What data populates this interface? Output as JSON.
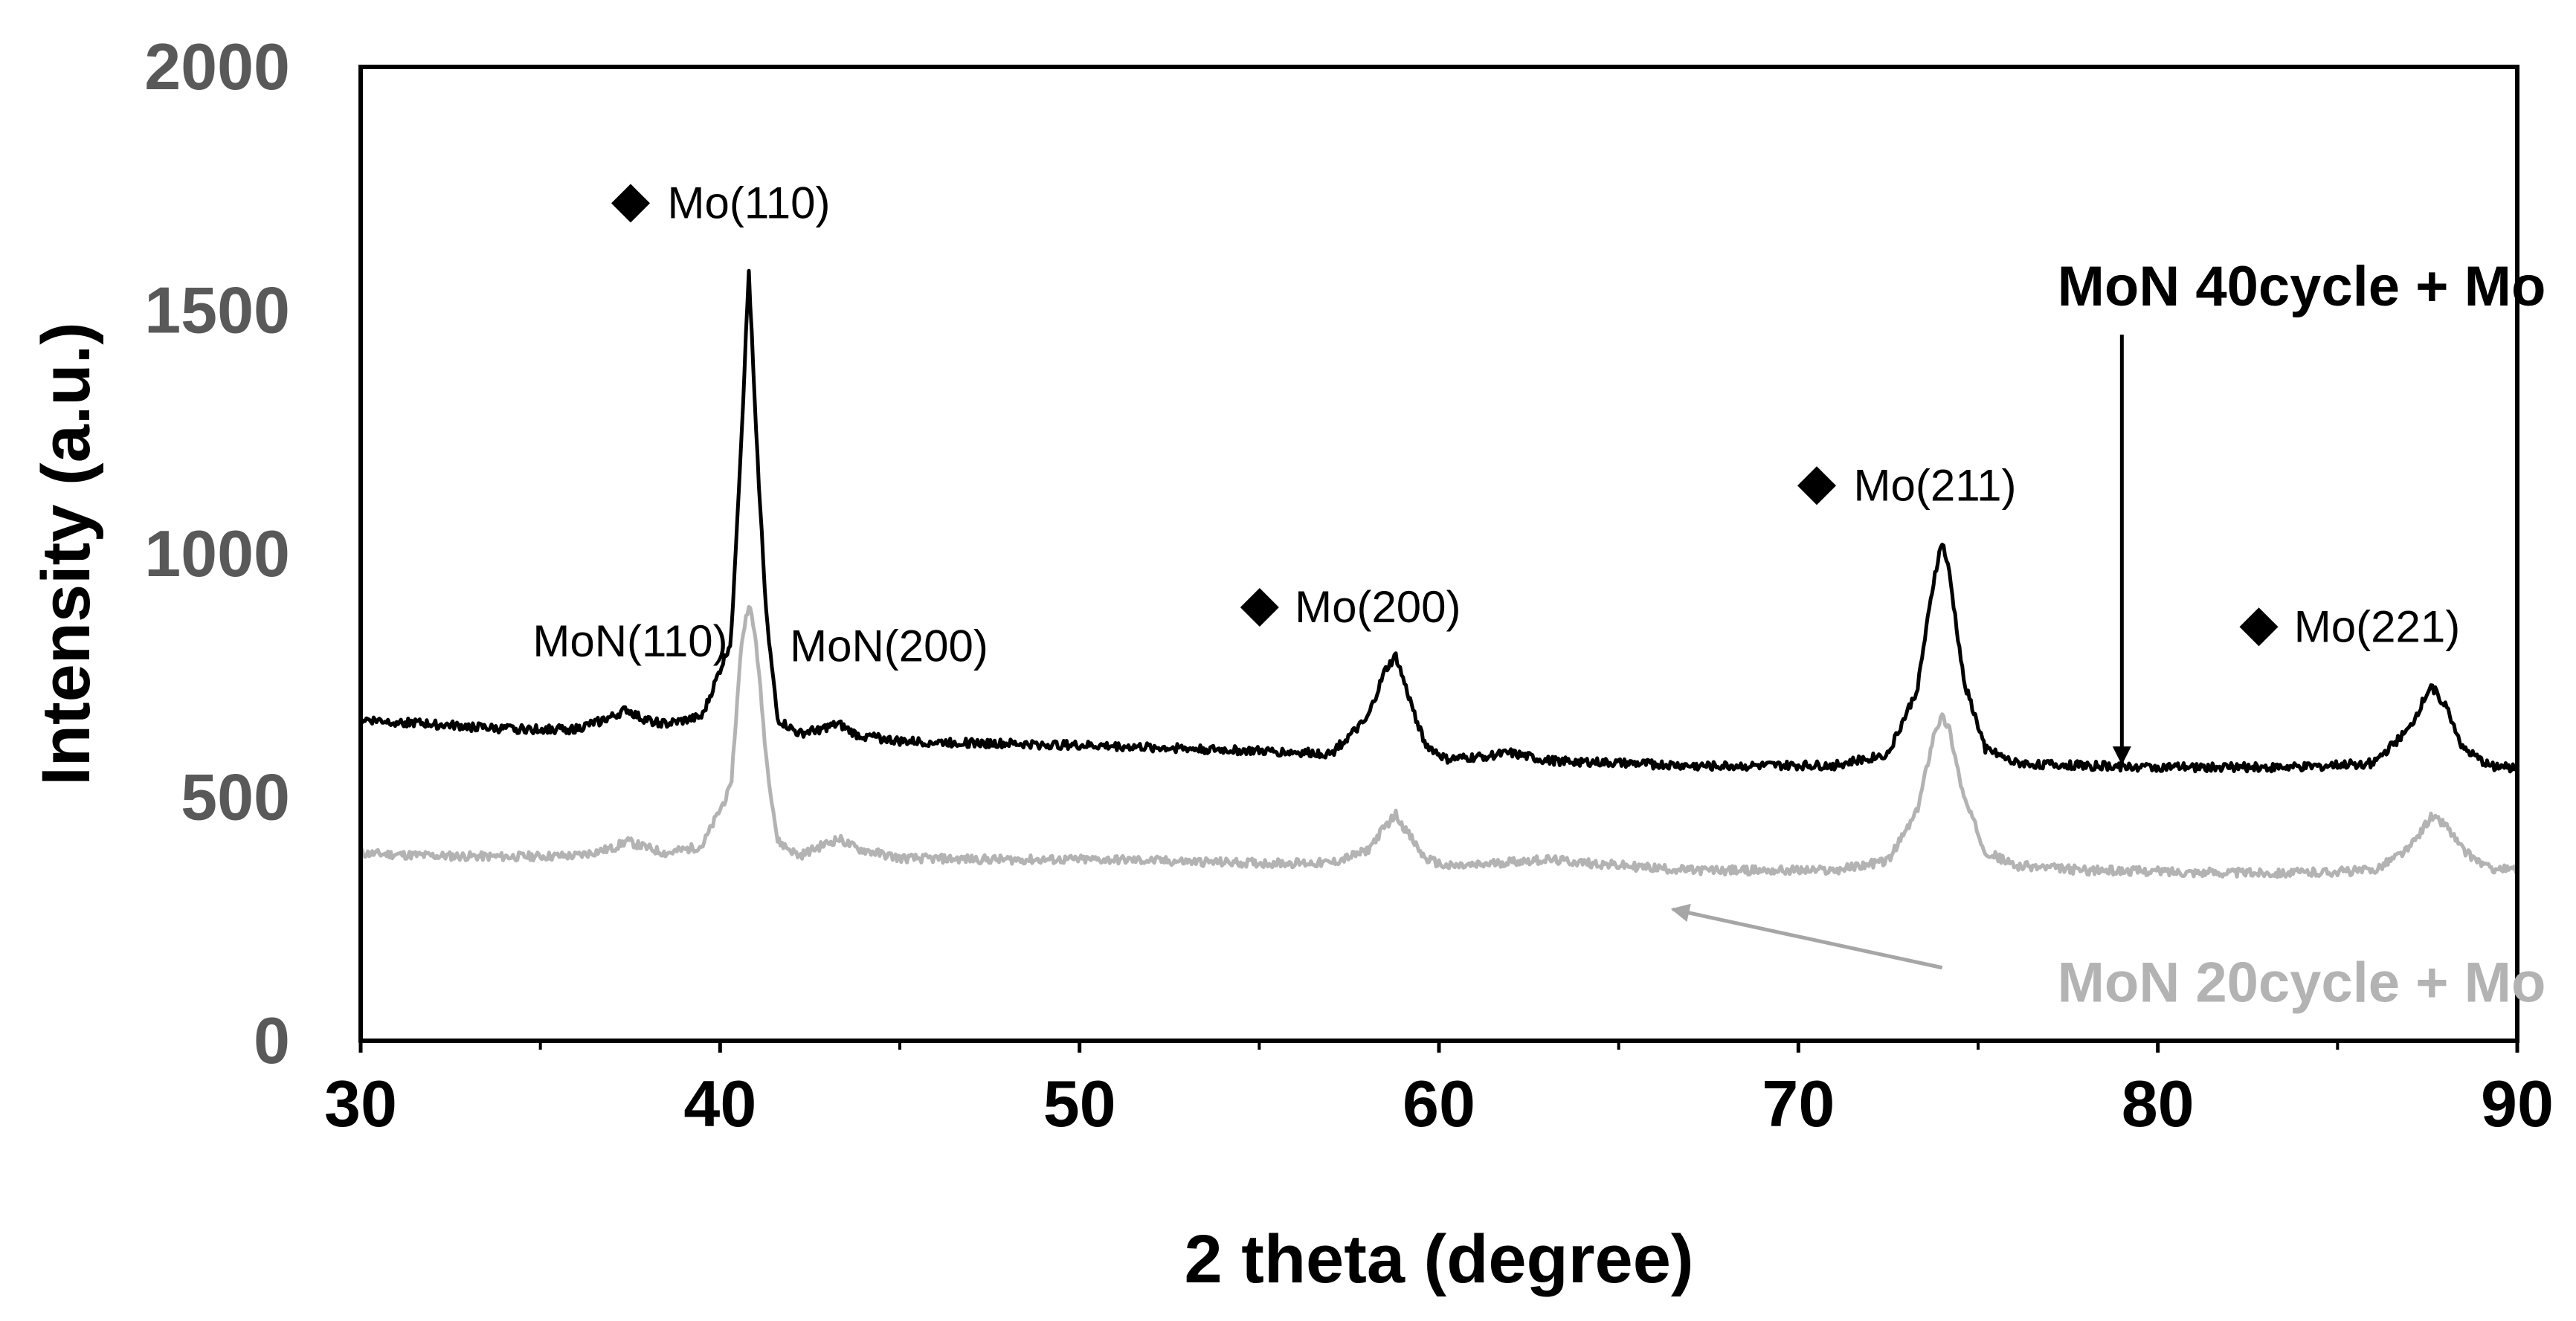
{
  "chart_data": {
    "type": "line",
    "title": "",
    "xlabel": "2 theta (degree)",
    "ylabel": "Intensity (a.u.)",
    "xlim": [
      30,
      90
    ],
    "ylim": [
      0,
      2000
    ],
    "x_ticks": [
      30,
      40,
      50,
      60,
      70,
      80,
      90
    ],
    "y_ticks": [
      0,
      500,
      1000,
      1500,
      2000
    ],
    "x_minor_ticks": [
      35,
      45,
      55,
      65,
      75,
      85
    ],
    "grid": false,
    "series": [
      {
        "name": "MoN 40cycle + Mo",
        "color": "#000000",
        "x": [
          30,
          32,
          34,
          36,
          37,
          37.4,
          37.8,
          38.5,
          39.5,
          40.3,
          40.6,
          40.8,
          41.0,
          41.3,
          41.6,
          42.2,
          42.8,
          43.3,
          43.8,
          45,
          48,
          51,
          53,
          55,
          57,
          58.0,
          58.5,
          58.8,
          59.1,
          59.6,
          60.2,
          61,
          62,
          63,
          65,
          67,
          69,
          71,
          72.5,
          73.3,
          73.8,
          74.0,
          74.2,
          74.6,
          75.2,
          76,
          78,
          80,
          82,
          84,
          86,
          87.0,
          87.6,
          88.0,
          88.5,
          89.2,
          90
        ],
        "y": [
          660,
          650,
          640,
          640,
          665,
          680,
          662,
          650,
          665,
          820,
          1250,
          1580,
          1250,
          860,
          660,
          630,
          640,
          650,
          628,
          615,
          610,
          605,
          600,
          595,
          590,
          660,
          760,
          790,
          720,
          610,
          578,
          582,
          590,
          575,
          570,
          565,
          565,
          565,
          590,
          720,
          960,
          1025,
          960,
          740,
          600,
          570,
          565,
          562,
          562,
          562,
          570,
          640,
          730,
          690,
          600,
          565,
          560
        ]
      },
      {
        "name": "MoN 20cycle + Mo",
        "color": "#b3b3b3",
        "x": [
          30,
          32,
          34,
          36,
          37,
          37.4,
          37.8,
          38.5,
          39.5,
          40.3,
          40.6,
          40.8,
          41.0,
          41.3,
          41.6,
          42.2,
          42.8,
          43.3,
          43.8,
          45,
          48,
          51,
          53,
          55,
          57,
          58.0,
          58.5,
          58.8,
          59.1,
          59.6,
          60.2,
          61,
          62,
          63,
          65,
          67,
          69,
          71,
          72.5,
          73.3,
          73.8,
          74.0,
          74.2,
          74.6,
          75.2,
          76,
          78,
          80,
          82,
          84,
          86,
          87.0,
          87.6,
          88.0,
          88.5,
          89.2,
          90
        ],
        "y": [
          385,
          380,
          378,
          380,
          395,
          410,
          400,
          385,
          400,
          520,
          820,
          900,
          820,
          570,
          410,
          380,
          400,
          415,
          395,
          375,
          372,
          372,
          368,
          365,
          365,
          390,
          440,
          465,
          430,
          375,
          358,
          360,
          368,
          372,
          360,
          350,
          350,
          350,
          370,
          470,
          640,
          665,
          640,
          500,
          390,
          360,
          350,
          348,
          345,
          345,
          350,
          395,
          460,
          445,
          390,
          355,
          350
        ]
      }
    ],
    "peak_labels": [
      {
        "text": "Mo(110)",
        "x": 40.8,
        "y": 1720,
        "marker": true
      },
      {
        "text": "MoN(110)",
        "x": 37.5,
        "y": 820,
        "marker": false
      },
      {
        "text": "MoN(200)",
        "x": 44.7,
        "y": 810,
        "marker": false
      },
      {
        "text": "Mo(200)",
        "x": 58.3,
        "y": 890,
        "marker": true
      },
      {
        "text": "Mo(211)",
        "x": 73.8,
        "y": 1140,
        "marker": true
      },
      {
        "text": "Mo(221)",
        "x": 86.1,
        "y": 850,
        "marker": true
      }
    ],
    "annotations": [
      {
        "text": "MoN 40cycle + Mo",
        "series": 0,
        "text_x": 84.0,
        "text_y": 1550,
        "arrow_from": [
          79.0,
          1450
        ],
        "arrow_to": [
          79.0,
          570
        ]
      },
      {
        "text": "MoN 20cycle + Mo",
        "series": 1,
        "text_x": 84.0,
        "text_y": 120,
        "arrow_from": [
          74.0,
          150
        ],
        "arrow_to": [
          66.5,
          270
        ]
      }
    ]
  }
}
